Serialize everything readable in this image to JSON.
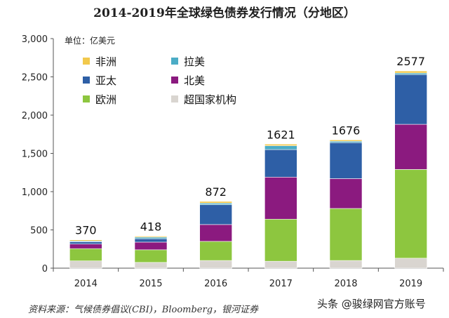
{
  "title": "2014-2019年全球绿色债券发行情况（分地区）",
  "source": "资料来源：气候债券倡议(CBI)，Bloomberg，银河证券",
  "watermark": "头条 @骏绿网官方账号",
  "colors": {
    "非洲": "#f2c94c",
    "拉美": "#4bacc6",
    "亚太": "#2e5fa6",
    "北美": "#8b1a7f",
    "欧洲": "#8dc63f",
    "超国家机构": "#d9d5d0"
  },
  "chart_data": {
    "type": "bar",
    "stacked": true,
    "unit_label": "单位：亿美元",
    "categories": [
      "2014",
      "2015",
      "2016",
      "2017",
      "2018",
      "2019"
    ],
    "totals": [
      370,
      418,
      872,
      1621,
      1676,
      2577
    ],
    "total_labels": [
      "370",
      "418",
      "872",
      "1621",
      "1676",
      "2577"
    ],
    "series": [
      {
        "name": "超国家机构",
        "values": [
          95,
          75,
          100,
          90,
          100,
          130
        ]
      },
      {
        "name": "欧洲",
        "values": [
          160,
          165,
          250,
          550,
          680,
          1160
        ]
      },
      {
        "name": "北美",
        "values": [
          60,
          100,
          220,
          550,
          390,
          590
        ]
      },
      {
        "name": "亚太",
        "values": [
          30,
          45,
          260,
          360,
          470,
          650
        ]
      },
      {
        "name": "拉美",
        "values": [
          10,
          20,
          20,
          50,
          18,
          20
        ]
      },
      {
        "name": "非洲",
        "values": [
          15,
          13,
          22,
          21,
          18,
          27
        ]
      }
    ],
    "legend": [
      {
        "name": "非洲"
      },
      {
        "name": "拉美"
      },
      {
        "name": "亚太"
      },
      {
        "name": "北美"
      },
      {
        "name": "欧洲"
      },
      {
        "name": "超国家机构"
      }
    ],
    "legend_position": "top-left",
    "ylim": [
      0,
      3000
    ],
    "yticks": [
      0,
      500,
      1000,
      1500,
      2000,
      2500,
      3000
    ],
    "ytick_labels": [
      "0",
      "500",
      "1,000",
      "1,500",
      "2,000",
      "2,500",
      "3,000"
    ],
    "grid": false
  }
}
